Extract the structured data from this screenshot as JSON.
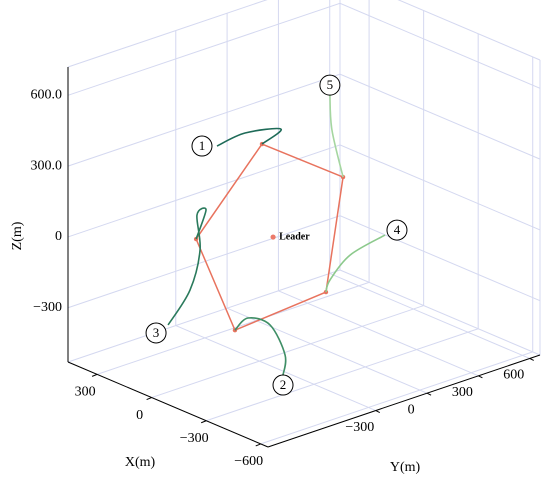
{
  "chart_data": {
    "type": "line3d",
    "xlabel": "X(m)",
    "ylabel": "Y(m)",
    "zlabel": "Z(m)",
    "xlim": [
      -640,
      460
    ],
    "ylim": [
      -930,
      660
    ],
    "zlim": [
      -530,
      720
    ],
    "xticks": [
      300,
      0,
      {
        "value": -300,
        "label": "−300"
      },
      {
        "value": -600,
        "label": "−600"
      }
    ],
    "yticks": [
      {
        "value": -300,
        "label": "−300"
      },
      0,
      300,
      600
    ],
    "zticks": [
      {
        "value": 600,
        "label": "600.0"
      },
      {
        "value": 300,
        "label": "300.0"
      },
      0,
      {
        "value": -300,
        "label": "−300"
      }
    ],
    "grid": true,
    "series": [
      {
        "name": "1",
        "color": "#1e6b58",
        "x": [
          0,
          0,
          0,
          0
        ],
        "y": [
          -548,
          -384,
          -174,
          -285
        ],
        "z": [
          442,
          457,
          422,
          386
        ]
      },
      {
        "name": "2",
        "color": "#3f8f66",
        "x": [
          0,
          0,
          0,
          0,
          0
        ],
        "y": [
          -162,
          -150,
          -238,
          -367,
          -443
        ],
        "z": [
          -623,
          -541,
          -392,
          -331,
          -364
        ]
      },
      {
        "name": "3",
        "color": "#2a7a5c",
        "x": [
          0,
          0,
          0,
          0,
          0,
          0
        ],
        "y": [
          -834,
          -706,
          -647,
          -665,
          -612,
          -670
        ],
        "z": [
          -246,
          -130,
          26,
          178,
          187,
          78
        ]
      },
      {
        "name": "4",
        "color": "#8cc98c",
        "x": [
          0,
          0,
          0,
          0
        ],
        "y": [
          434,
          229,
          112,
          89
        ],
        "z": [
          -176,
          -211,
          -288,
          -333
        ]
      },
      {
        "name": "5",
        "color": "#a5d6a0",
        "x": [
          0,
          0,
          0
        ],
        "y": [
          112,
          124,
          189
        ],
        "z": [
          496,
          345,
          130
        ]
      }
    ],
    "formation": {
      "color": "#e8735e",
      "x": [
        0,
        0,
        0,
        0,
        0
      ],
      "y": [
        -285,
        189,
        89,
        -443,
        -670
      ],
      "z": [
        386,
        130,
        -333,
        -364,
        78
      ]
    },
    "leader": {
      "name": "Leader",
      "color": "#ec7a6a",
      "x": 0,
      "y": -220,
      "z": -24
    }
  }
}
